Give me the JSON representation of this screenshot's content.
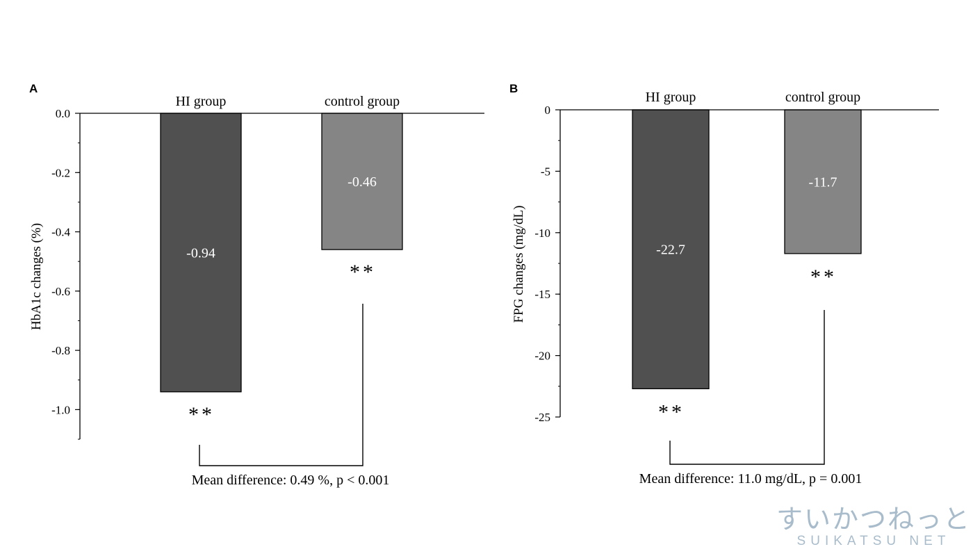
{
  "chart_data": [
    {
      "panel": "A",
      "type": "bar",
      "categories": [
        "HI group",
        "control group"
      ],
      "values": [
        -0.94,
        -0.46
      ],
      "value_labels": [
        "-0.94",
        "-0.46"
      ],
      "significance": [
        "**",
        "**"
      ],
      "ylabel": "HbA1c changes (%)",
      "ylim": [
        -1.1,
        0.0
      ],
      "yticks": [
        "0.0",
        "-0.2",
        "-0.4",
        "-0.6",
        "-0.8",
        "-1.0"
      ],
      "ytick_values": [
        0.0,
        -0.2,
        -0.4,
        -0.6,
        -0.8,
        -1.0
      ],
      "bar_colors": [
        "#505050",
        "#858585"
      ],
      "annotation": "Mean difference: 0.49 %, p < 0.001"
    },
    {
      "panel": "B",
      "type": "bar",
      "categories": [
        "HI group",
        "control group"
      ],
      "values": [
        -22.7,
        -11.7
      ],
      "value_labels": [
        "-22.7",
        "-11.7"
      ],
      "significance": [
        "**",
        "**"
      ],
      "ylabel": "FPG changes (mg/dL)",
      "ylim": [
        -25,
        0
      ],
      "yticks": [
        "0",
        "-5",
        "-10",
        "-15",
        "-20",
        "-25"
      ],
      "ytick_values": [
        0,
        -5,
        -10,
        -15,
        -20,
        -25
      ],
      "bar_colors": [
        "#505050",
        "#858585"
      ],
      "annotation": "Mean difference: 11.0 mg/dL, p = 0.001"
    }
  ],
  "watermark": {
    "japanese": "すいかつねっと",
    "latin": "SUIKATSU NET",
    "color": "#a9bccb"
  }
}
